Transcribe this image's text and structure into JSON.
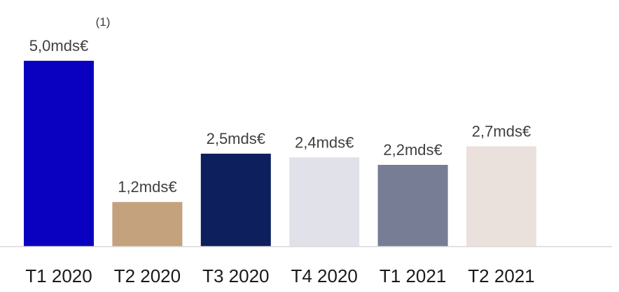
{
  "chart_data": {
    "type": "bar",
    "categories": [
      "T1 2020",
      "T2 2020",
      "T3 2020",
      "T4 2020",
      "T1 2021",
      "T2 2021"
    ],
    "values": [
      5.0,
      1.2,
      2.5,
      2.4,
      2.2,
      2.7
    ],
    "data_labels": [
      "5,0mds€",
      "1,2mds€",
      "2,5mds€",
      "2,4mds€",
      "2,2mds€",
      "2,7mds€"
    ],
    "colors": [
      "#0a00c0",
      "#c4a27e",
      "#0e1f5e",
      "#e1e2e9",
      "#767d95",
      "#ebe1dc"
    ],
    "footnote": "(1)",
    "ylim": [
      0,
      5.0
    ],
    "grid": false,
    "legend": "none"
  }
}
